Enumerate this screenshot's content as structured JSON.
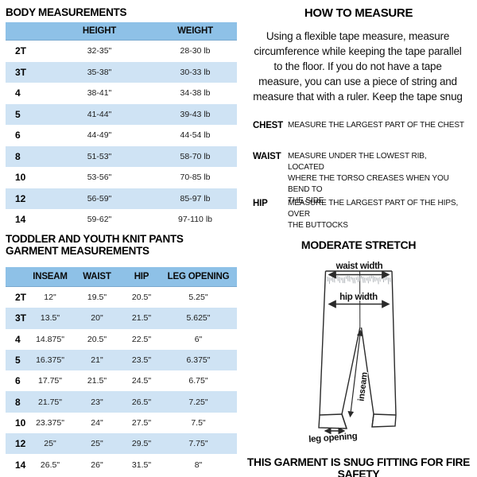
{
  "body_table": {
    "title": "BODY MEASUREMENTS",
    "columns": [
      "HEIGHT",
      "WEIGHT"
    ],
    "rows": [
      {
        "size": "2T",
        "height": "32-35\"",
        "weight": "28-30 lb"
      },
      {
        "size": "3T",
        "height": "35-38\"",
        "weight": "30-33 lb"
      },
      {
        "size": "4",
        "height": "38-41\"",
        "weight": "34-38 lb"
      },
      {
        "size": "5",
        "height": "41-44\"",
        "weight": "39-43 lb"
      },
      {
        "size": "6",
        "height": "44-49\"",
        "weight": "44-54 lb"
      },
      {
        "size": "8",
        "height": "51-53\"",
        "weight": "58-70 lb"
      },
      {
        "size": "10",
        "height": "53-56\"",
        "weight": "70-85 lb"
      },
      {
        "size": "12",
        "height": "56-59\"",
        "weight": "85-97 lb"
      },
      {
        "size": "14",
        "height": "59-62\"",
        "weight": "97-110 lb"
      }
    ]
  },
  "garment_table": {
    "title_line1": "TODDLER AND YOUTH KNIT PANTS",
    "title_line2": "GARMENT MEASUREMENTS",
    "columns": [
      "INSEAM",
      "WAIST",
      "HIP",
      "LEG OPENING"
    ],
    "rows": [
      {
        "size": "2T",
        "inseam": "12\"",
        "waist": "19.5\"",
        "hip": "20.5\"",
        "leg": "5.25\""
      },
      {
        "size": "3T",
        "inseam": "13.5\"",
        "waist": "20\"",
        "hip": "21.5\"",
        "leg": "5.625\""
      },
      {
        "size": "4",
        "inseam": "14.875\"",
        "waist": "20.5\"",
        "hip": "22.5\"",
        "leg": "6\""
      },
      {
        "size": "5",
        "inseam": "16.375\"",
        "waist": "21\"",
        "hip": "23.5\"",
        "leg": "6.375\""
      },
      {
        "size": "6",
        "inseam": "17.75\"",
        "waist": "21.5\"",
        "hip": "24.5\"",
        "leg": "6.75\""
      },
      {
        "size": "8",
        "inseam": "21.75\"",
        "waist": "23\"",
        "hip": "26.5\"",
        "leg": "7.25\""
      },
      {
        "size": "10",
        "inseam": "23.375\"",
        "waist": "24\"",
        "hip": "27.5\"",
        "leg": "7.5\""
      },
      {
        "size": "12",
        "inseam": "25\"",
        "waist": "25\"",
        "hip": "29.5\"",
        "leg": "7.75\""
      },
      {
        "size": "14",
        "inseam": "26.5\"",
        "waist": "26\"",
        "hip": "31.5\"",
        "leg": "8\""
      }
    ]
  },
  "how_to_measure": {
    "title": "HOW TO MEASURE",
    "intro_lines": [
      "Using a flexible tape measure, measure",
      "circumference while keeping the tape parallel",
      "to the floor.  If you do not have a tape",
      "measure, you can use a piece of string and",
      "measure that with a ruler. Keep the tape snug"
    ],
    "items": [
      {
        "label": "CHEST",
        "lines": [
          "MEASURE THE LARGEST PART OF THE CHEST"
        ]
      },
      {
        "label": "WAIST",
        "lines": [
          "MEASURE UNDER THE LOWEST RIB, LOCATED",
          "WHERE THE TORSO CREASES WHEN YOU BEND TO",
          "THE SIDE"
        ]
      },
      {
        "label": "HIP",
        "lines": [
          "MEASURE THE LARGEST PART OF THE HIPS, OVER",
          "THE BUTTOCKS"
        ]
      }
    ]
  },
  "diagram": {
    "title": "MODERATE STRETCH",
    "labels": {
      "waist_width": "waist width",
      "hip_width": "hip width",
      "inseam": "inseam",
      "leg_opening": "leg opening"
    }
  },
  "footer": {
    "text": "THIS GARMENT IS SNUG FITTING FOR FIRE SAFETY"
  },
  "colors": {
    "header_blue": "#8ec1e7",
    "row_blue": "#cfe3f4",
    "text": "#1c1c1c",
    "diagram_line": "#2a2a2a"
  }
}
